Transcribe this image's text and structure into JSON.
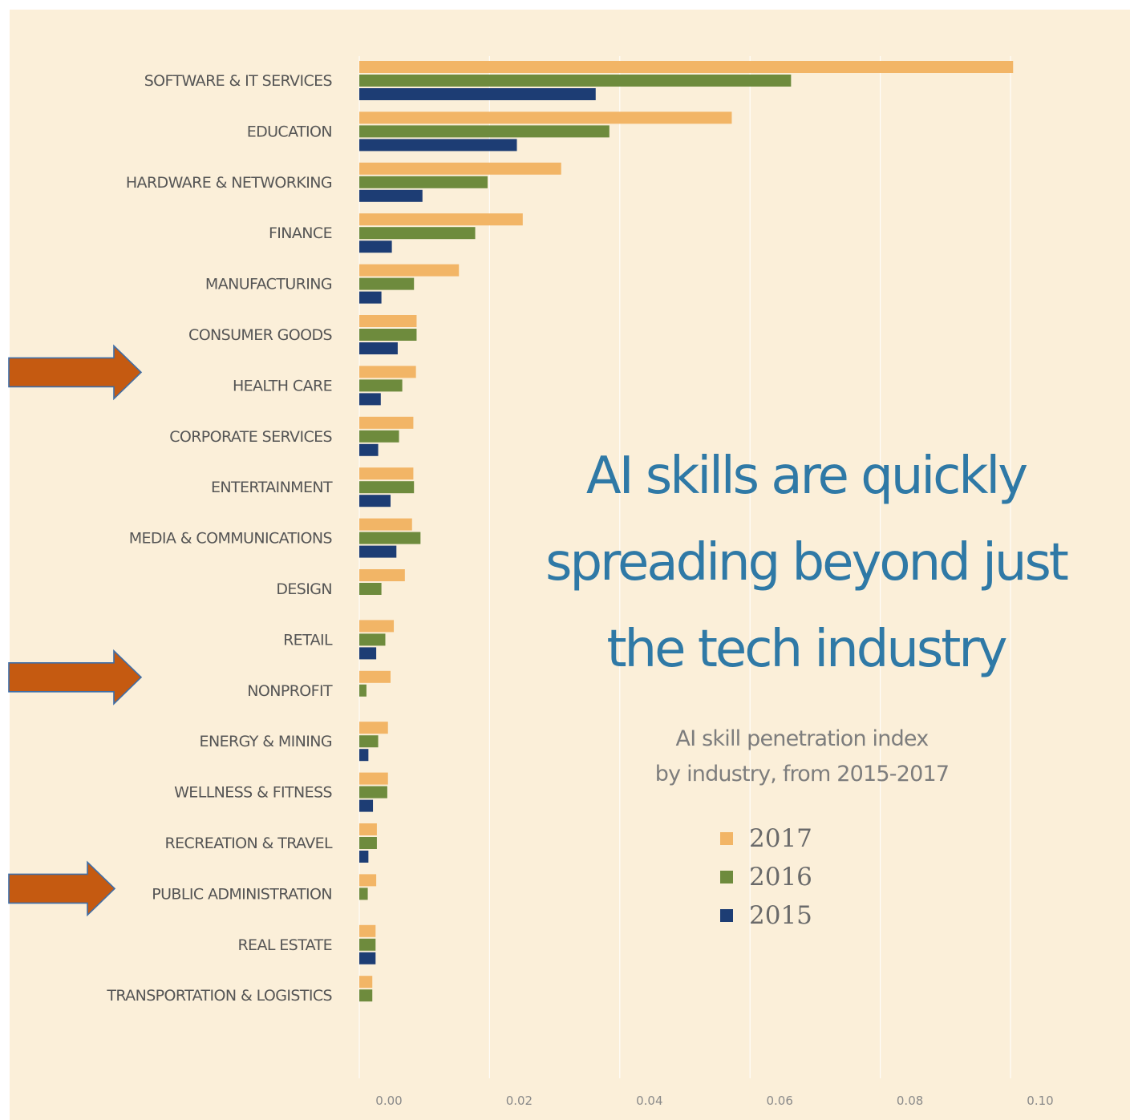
{
  "chart_data": {
    "type": "bar",
    "orientation": "horizontal",
    "title": "AI skills are quickly spreading beyond just the tech industry",
    "title_lines": [
      "AI skills are quickly",
      "spreading beyond just",
      "the tech industry"
    ],
    "subtitle": "AI skill penetration index by industry, from 2015-2017",
    "subtitle_lines": [
      "AI skill penetration index",
      "by industry, from 2015-2017"
    ],
    "xlim": [
      0.0,
      0.11
    ],
    "xticks": [
      0.0,
      0.02,
      0.04,
      0.06,
      0.08,
      0.1
    ],
    "xtick_labels": [
      "0.00",
      "0.02",
      "0.04",
      "0.06",
      "0.08",
      "0.10"
    ],
    "grid": true,
    "legend_position": "center-right",
    "categories": [
      "SOFTWARE & IT SERVICES",
      "EDUCATION",
      "HARDWARE & NETWORKING",
      "FINANCE",
      "MANUFACTURING",
      "CONSUMER GOODS",
      "HEALTH CARE",
      "CORPORATE SERVICES",
      "ENTERTAINMENT",
      "MEDIA & COMMUNICATIONS",
      "DESIGN",
      "RETAIL",
      "NONPROFIT",
      "ENERGY & MINING",
      "WELLNESS & FITNESS",
      "RECREATION & TRAVEL",
      "PUBLIC ADMINISTRATION",
      "REAL ESTATE",
      "TRANSPORTATION & LOGISTICS"
    ],
    "series": [
      {
        "name": "2017",
        "color": "#f2b566",
        "values": [
          0.1004,
          0.0572,
          0.031,
          0.0251,
          0.0153,
          0.0088,
          0.0087,
          0.0083,
          0.0083,
          0.0081,
          0.007,
          0.0053,
          0.0048,
          0.0044,
          0.0044,
          0.0027,
          0.0026,
          0.0025,
          0.002
        ]
      },
      {
        "name": "2016",
        "color": "#6e8b3d",
        "values": [
          0.0663,
          0.0384,
          0.0197,
          0.0178,
          0.0084,
          0.0088,
          0.0066,
          0.0061,
          0.0084,
          0.0094,
          0.0034,
          0.004,
          0.0011,
          0.0029,
          0.0043,
          0.0027,
          0.0013,
          0.0025,
          0.002
        ]
      },
      {
        "name": "2015",
        "color": "#1d3d74",
        "values": [
          0.0363,
          0.0242,
          0.0097,
          0.005,
          0.0034,
          0.0059,
          0.0033,
          0.0029,
          0.0048,
          0.0057,
          0.0,
          0.0026,
          0.0,
          0.0014,
          0.0021,
          0.0014,
          0.0,
          0.0025,
          0.0
        ]
      }
    ]
  },
  "annotations": {
    "arrow_color": "#c55a11",
    "arrows_point_to": [
      "HEALTH CARE",
      "NONPROFIT",
      "PUBLIC ADMINISTRATION"
    ]
  },
  "colors": {
    "background": "#fbefd9",
    "gridline": "#ffffff",
    "title": "#2f79a6"
  }
}
